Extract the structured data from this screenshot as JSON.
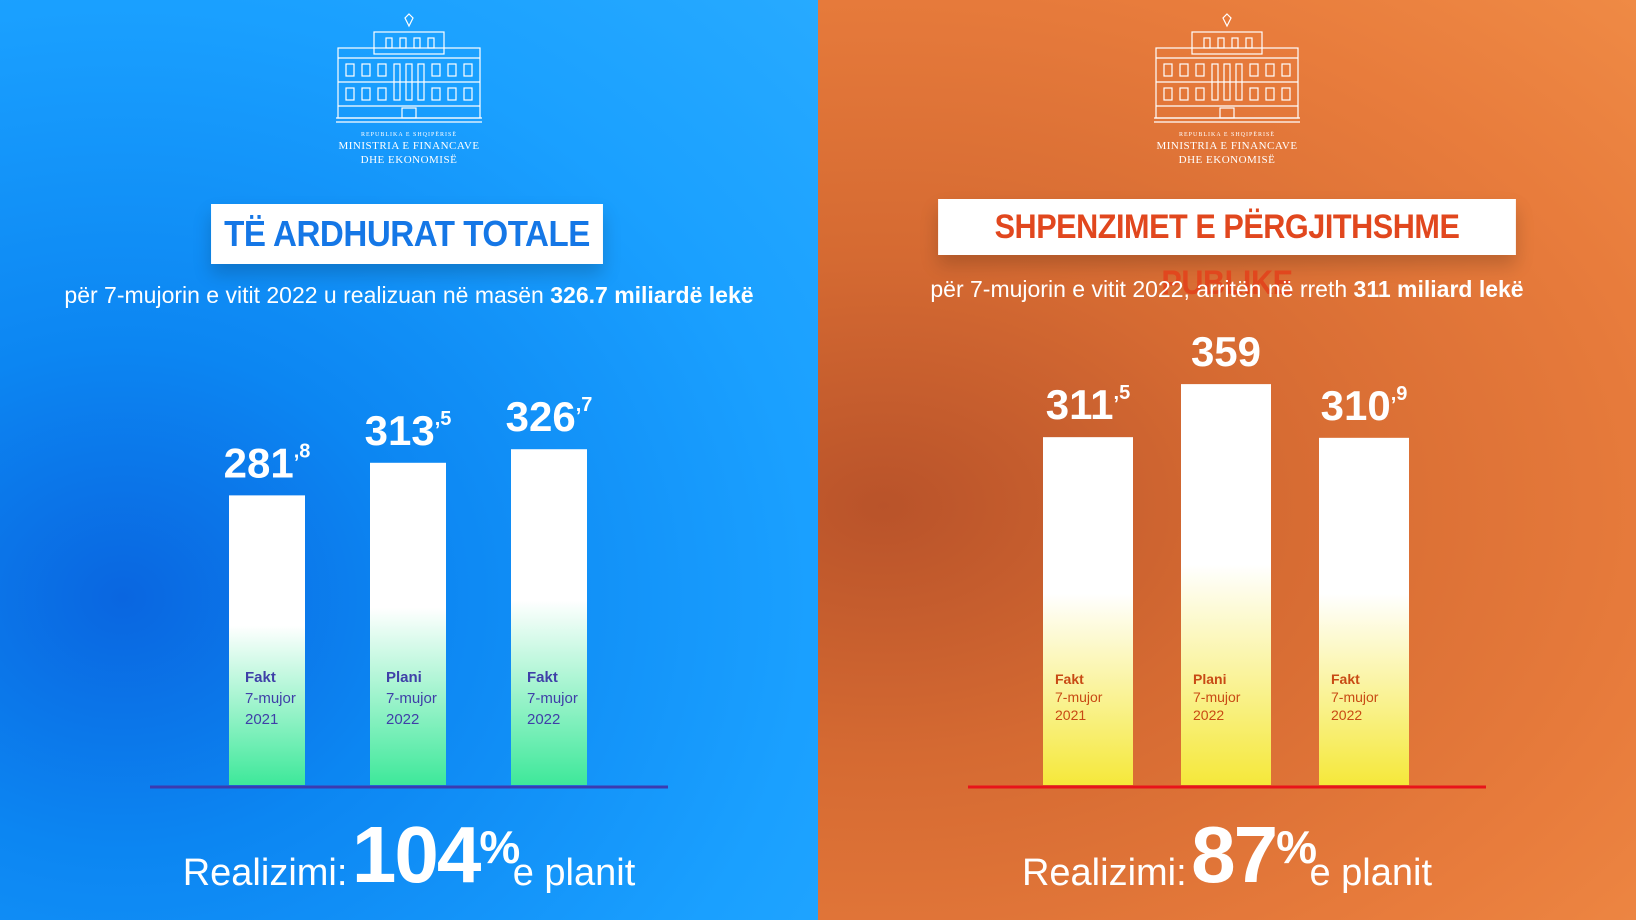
{
  "ministry": {
    "republic": "REPUBLIKA E SHQIPËRISË",
    "line1": "MINISTRIA E FINANCAVE",
    "line2": "DHE EKONOMISË"
  },
  "left": {
    "title": "TË ARDHURAT TOTALE",
    "subtitle_prefix": "për 7-mujorin e vitit 2022 u realizuan në masën ",
    "subtitle_bold": "326.7 miliardë lekë",
    "realization_label": "Realizimi:",
    "realization_value": "104",
    "realization_unit": "%",
    "realization_tail": "e planit"
  },
  "right": {
    "title": "SHPENZIMET E PËRGJITHSHME PUBLIKE",
    "subtitle_prefix": "për 7-mujorin e vitit 2022, arritën në rreth ",
    "subtitle_bold": "311 miliard lekë",
    "realization_label": "Realizimi:",
    "realization_value": "87",
    "realization_unit": "%",
    "realization_tail": "e planit"
  },
  "colors": {
    "left_bg": "#1a9cff",
    "right_bg": "#e87c3c",
    "left_title": "#1577e6",
    "right_title": "#e1471e",
    "left_bar_bottom": "#3ee89a",
    "right_bar_bottom": "#f5e83a",
    "left_baseline": "#3b3bb0",
    "right_baseline": "#e8141a"
  },
  "chart_data": [
    {
      "type": "bar",
      "categories": [
        "Fakt 7-mujor 2021",
        "Plani 7-mujor 2022",
        "Fakt 7-mujor 2022"
      ],
      "category_labels": [
        [
          "Fakt",
          "7-mujor",
          "2021"
        ],
        [
          "Plani",
          "7-mujor",
          "2022"
        ],
        [
          "Fakt",
          "7-mujor",
          "2022"
        ]
      ],
      "values": [
        281.8,
        313.5,
        326.7
      ],
      "value_labels": [
        [
          "281",
          ",8"
        ],
        [
          "313",
          ",5"
        ],
        [
          "326",
          ",7"
        ]
      ],
      "title": "TË ARDHURAT TOTALE",
      "ylim": [
        0,
        360
      ]
    },
    {
      "type": "bar",
      "categories": [
        "Fakt 7-mujor 2021",
        "Plani 7-mujor 2022",
        "Fakt 7-mujor 2022"
      ],
      "category_labels": [
        [
          "Fakt",
          "7-mujor",
          "2021"
        ],
        [
          "Plani",
          "7-mujor",
          "2022"
        ],
        [
          "Fakt",
          "7-mujor",
          "2022"
        ]
      ],
      "values": [
        311.5,
        359,
        310.9
      ],
      "value_labels": [
        [
          "311",
          ",5"
        ],
        [
          "359",
          ""
        ],
        [
          "310",
          ",9"
        ]
      ],
      "title": "SHPENZIMET E PËRGJITHSHME PUBLIKE",
      "ylim": [
        0,
        360
      ]
    }
  ]
}
